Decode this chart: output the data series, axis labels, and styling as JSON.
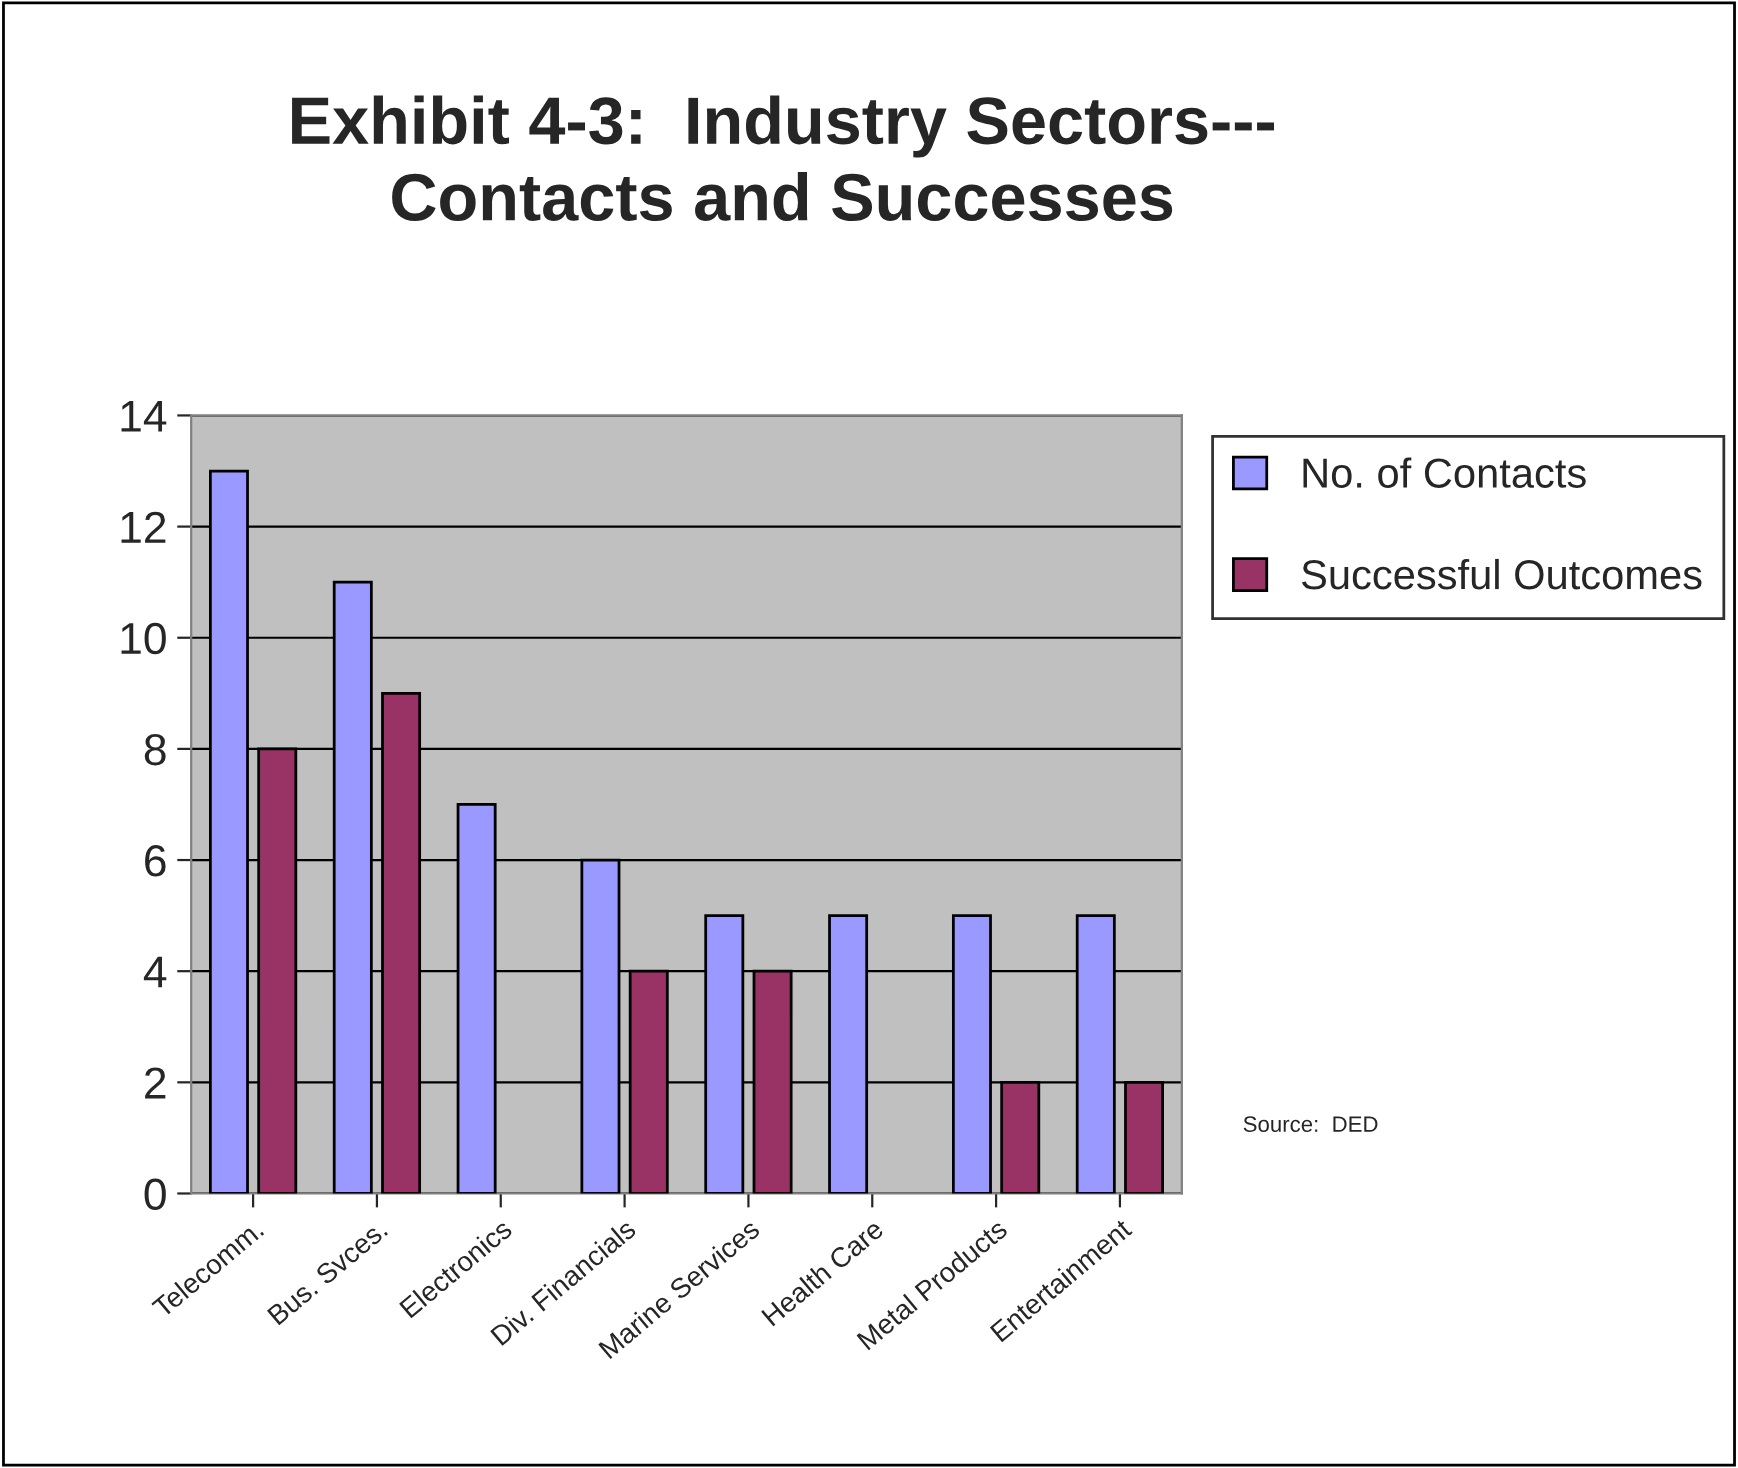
{
  "chart_data": {
    "type": "bar",
    "title": "Exhibit 4-3:  Industry Sectors---\nContacts and Successes",
    "categories": [
      "Telecomm.",
      "Bus. Svces.",
      "Electronics",
      "Div. Financials",
      "Marine Services",
      "Health Care",
      "Metal Products",
      "Entertainment"
    ],
    "series": [
      {
        "name": "No. of Contacts",
        "color": "#9999ff",
        "values": [
          13,
          11,
          7,
          6,
          5,
          5,
          5,
          5
        ]
      },
      {
        "name": "Successful Outcomes",
        "color": "#993366",
        "values": [
          8,
          9,
          null,
          4,
          4,
          null,
          2,
          2
        ]
      }
    ],
    "ylim": [
      0,
      14
    ],
    "yticks": [
      0,
      2,
      4,
      6,
      8,
      10,
      12,
      14
    ],
    "grid": "y",
    "legend": "top right",
    "annotations": [
      "Source:  DED"
    ]
  }
}
